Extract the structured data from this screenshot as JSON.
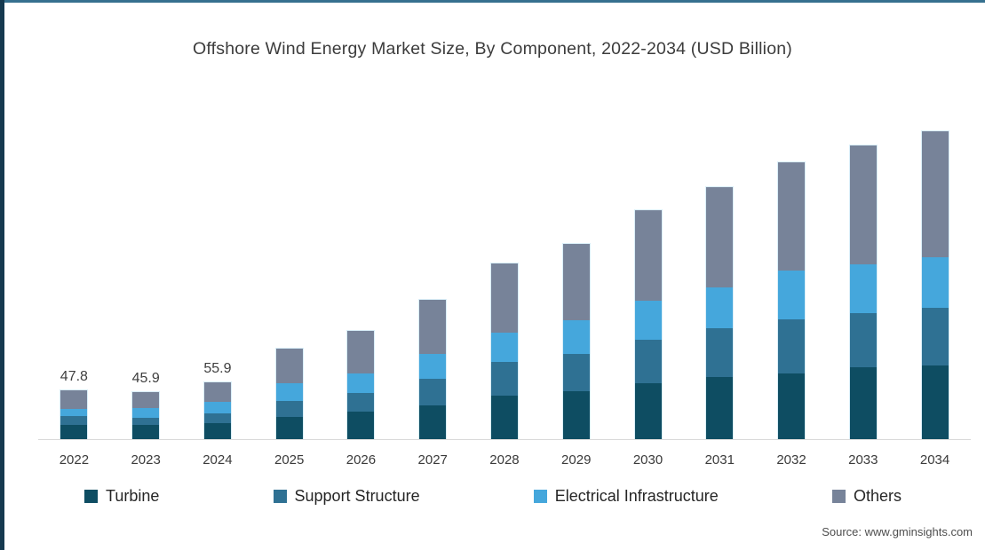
{
  "frame": {
    "top_accent_color": "#36708F",
    "left_accent_color": "#15394F"
  },
  "chart_data": {
    "type": "bar",
    "stacked": true,
    "title": "Offshore Wind Energy Market Size, By Component, 2022-2034 (USD Billion)",
    "unit": "USD Billion",
    "grid": false,
    "legend_position": "bottom",
    "ylim": [
      0,
      310
    ],
    "categories": [
      "2022",
      "2023",
      "2024",
      "2025",
      "2026",
      "2027",
      "2028",
      "2029",
      "2030",
      "2031",
      "2032",
      "2033",
      "2034"
    ],
    "series": [
      {
        "name": "Turbine",
        "color": "#0E4D62",
        "values": [
          13.9,
          13.8,
          16.0,
          21.7,
          26.9,
          33.0,
          42.5,
          46.9,
          54.7,
          60.8,
          64.2,
          70.3,
          72.0
        ]
      },
      {
        "name": "Support Structure",
        "color": "#2F7193",
        "values": [
          8.7,
          7.2,
          8.9,
          15.6,
          18.2,
          26.0,
          33.0,
          36.5,
          42.5,
          47.7,
          52.9,
          52.9,
          56.4
        ]
      },
      {
        "name": "Electrical Infrastructure",
        "color": "#45A7DC",
        "values": [
          6.9,
          9.6,
          11.5,
          17.4,
          19.1,
          24.3,
          28.6,
          33.0,
          38.2,
          39.9,
          47.7,
          47.7,
          49.5
        ]
      },
      {
        "name": "Others",
        "color": "#778399",
        "values": [
          18.3,
          15.3,
          19.5,
          33.8,
          41.7,
          52.9,
          67.7,
          74.6,
          88.5,
          98.1,
          105.9,
          116.3,
          123.2
        ]
      }
    ],
    "totals": [
      47.8,
      45.9,
      55.9,
      88.5,
      105.9,
      136.2,
      171.8,
      191.0,
      223.9,
      246.5,
      270.7,
      287.2,
      301.1
    ],
    "value_labels": {
      "2022": "47.8",
      "2023": "45.9",
      "2024": "55.9"
    }
  },
  "source": {
    "label": "Source: www.gminsights.com"
  }
}
